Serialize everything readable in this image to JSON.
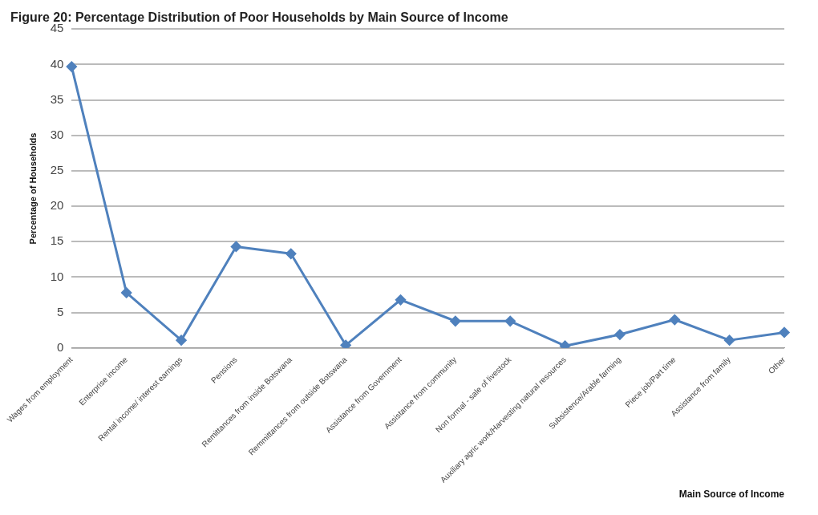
{
  "chart_data": {
    "type": "line",
    "title": "Figure 20: Percentage Distribution of Poor Households by Main Source of Income",
    "xlabel": "Main Source of Income",
    "ylabel": "Percentage of Households",
    "categories": [
      "Wages from employment",
      "Enterprise income",
      "Rental income/ interest earnings",
      "Pensions",
      "Remittances from inside Botswana",
      "Remmittances from outside Botswana",
      "Assistance from Government",
      "Assistance from community",
      "Non formal - sale of livestock",
      "Auxiliary agric work/Harvesting natural resources",
      "Subsistence/Arable farming",
      "Piece job/Part time",
      "Assistance from family",
      "Other"
    ],
    "series": [
      {
        "color": "#4f81bd",
        "values": [
          39.7,
          7.8,
          1.1,
          14.3,
          13.3,
          0.4,
          6.8,
          3.8,
          3.8,
          0.3,
          1.9,
          4.0,
          1.1,
          2.2
        ]
      }
    ],
    "ylim": [
      0,
      45
    ],
    "yticks": [
      0,
      5,
      10,
      15,
      20,
      25,
      30,
      35,
      40,
      45
    ],
    "grid": "y",
    "legend": false,
    "marker": "diamond",
    "line_style": "solid"
  }
}
